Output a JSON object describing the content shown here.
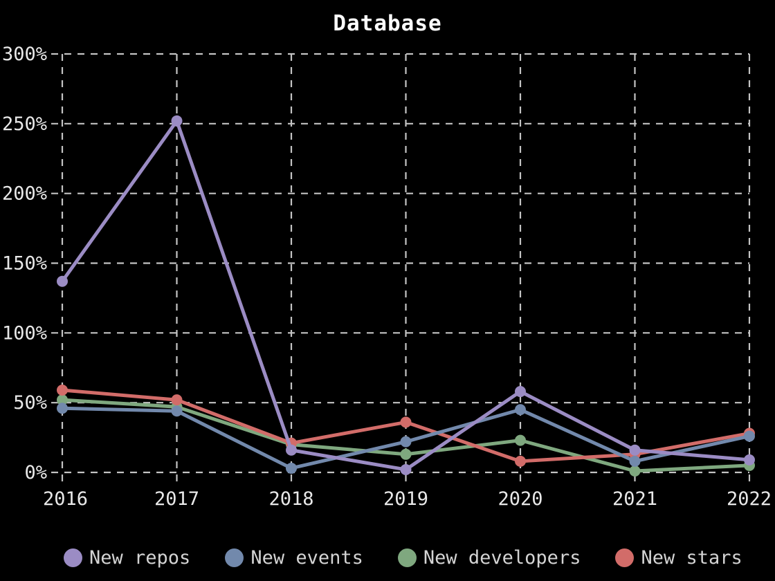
{
  "chart_title": "Database",
  "colors": {
    "background": "#000000",
    "grid": "#c4c4c4",
    "tick_label": "#e8e8e8",
    "title": "#ffffff",
    "legend_label": "#d4d4d4"
  },
  "chart_data": {
    "type": "line",
    "title": "Database",
    "xlabel": "",
    "ylabel": "",
    "x": [
      2016,
      2017,
      2018,
      2019,
      2020,
      2021,
      2022
    ],
    "x_tick_labels": [
      "2016",
      "2017",
      "2018",
      "2019",
      "2020",
      "2021",
      "2022"
    ],
    "y_tick_labels": [
      "0%",
      "50%",
      "100%",
      "150%",
      "200%",
      "250%",
      "300%"
    ],
    "ylim": [
      0,
      300
    ],
    "y_tick_step": 50,
    "grid": "dashed",
    "legend_position": "bottom",
    "marker": "circle",
    "series": [
      {
        "name": "New repos",
        "color": "#9b8cc4",
        "values": [
          137,
          252,
          16,
          2,
          58,
          16,
          9
        ]
      },
      {
        "name": "New events",
        "color": "#7289ac",
        "values": [
          46,
          44,
          3,
          22,
          45,
          8,
          26
        ]
      },
      {
        "name": "New developers",
        "color": "#7fa87f",
        "values": [
          52,
          47,
          20,
          13,
          23,
          1,
          5
        ]
      },
      {
        "name": "New stars",
        "color": "#d26c69",
        "values": [
          59,
          52,
          21,
          36,
          8,
          13,
          28
        ]
      }
    ],
    "draw_order": [
      2,
      3,
      1,
      0
    ]
  }
}
